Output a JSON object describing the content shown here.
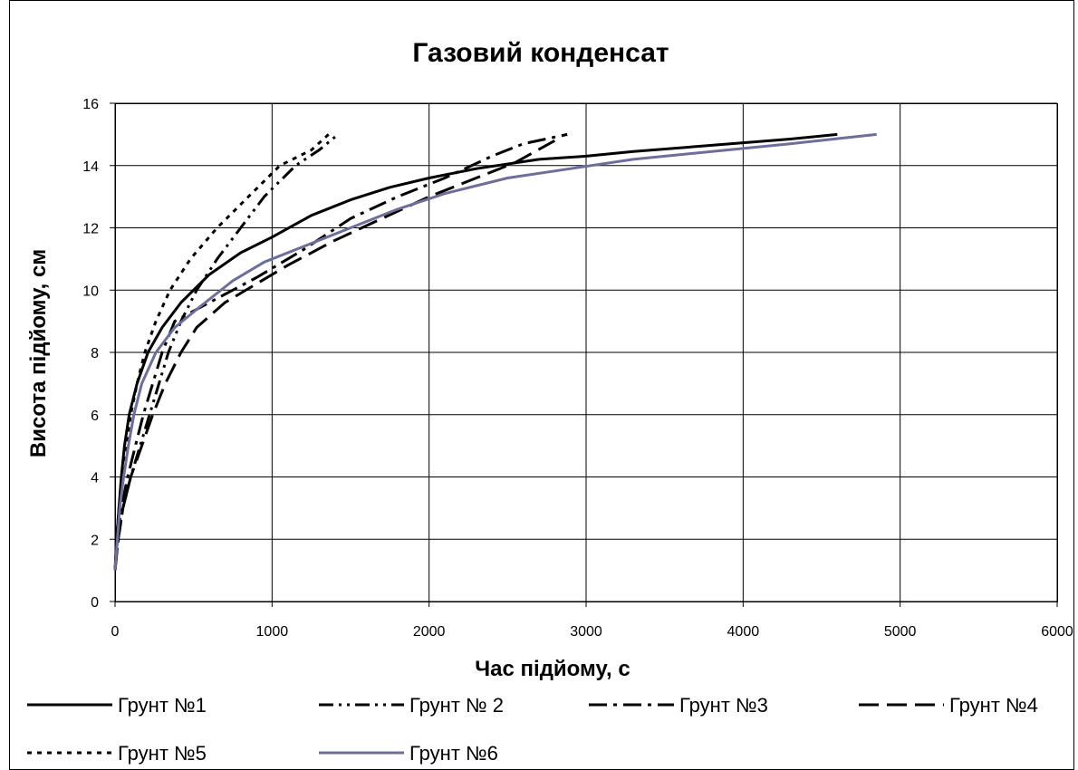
{
  "chart_data": {
    "type": "line",
    "title": "Газовий конденсат",
    "xlabel": "Час підйому, с",
    "ylabel": "Висота підйому, см",
    "xlim": [
      0,
      6000
    ],
    "ylim": [
      0,
      16
    ],
    "xticks": [
      0,
      1000,
      2000,
      3000,
      4000,
      5000,
      6000
    ],
    "yticks": [
      0,
      2,
      4,
      6,
      8,
      10,
      12,
      14,
      16
    ],
    "grid": true,
    "legend_position": "bottom",
    "series": [
      {
        "name": "Грунт №1",
        "color": "#000000",
        "dash": "solid",
        "points": [
          [
            0,
            1
          ],
          [
            10,
            2
          ],
          [
            25,
            3
          ],
          [
            40,
            4
          ],
          [
            60,
            5
          ],
          [
            90,
            6
          ],
          [
            140,
            7
          ],
          [
            210,
            8
          ],
          [
            300,
            8.8
          ],
          [
            420,
            9.6
          ],
          [
            600,
            10.5
          ],
          [
            800,
            11.2
          ],
          [
            1000,
            11.7
          ],
          [
            1250,
            12.4
          ],
          [
            1500,
            12.9
          ],
          [
            1750,
            13.3
          ],
          [
            2000,
            13.6
          ],
          [
            2300,
            13.9
          ],
          [
            2700,
            14.2
          ],
          [
            3000,
            14.3
          ],
          [
            3300,
            14.45
          ],
          [
            3800,
            14.65
          ],
          [
            4300,
            14.85
          ],
          [
            4600,
            15
          ]
        ]
      },
      {
        "name": "Грунт № 2",
        "color": "#000000",
        "dash": "dashdotdot",
        "points": [
          [
            0,
            1
          ],
          [
            20,
            2
          ],
          [
            50,
            3
          ],
          [
            100,
            4
          ],
          [
            160,
            5
          ],
          [
            220,
            6
          ],
          [
            280,
            7
          ],
          [
            340,
            8
          ],
          [
            420,
            9
          ],
          [
            520,
            10
          ],
          [
            650,
            11
          ],
          [
            800,
            12
          ],
          [
            950,
            13
          ],
          [
            1150,
            14
          ],
          [
            1300,
            14.5
          ],
          [
            1420,
            15
          ]
        ]
      },
      {
        "name": "Грунт №3",
        "color": "#000000",
        "dash": "dashdot",
        "points": [
          [
            0,
            1
          ],
          [
            15,
            2
          ],
          [
            40,
            3
          ],
          [
            80,
            4
          ],
          [
            130,
            5
          ],
          [
            180,
            6
          ],
          [
            240,
            7
          ],
          [
            300,
            8
          ],
          [
            380,
            9
          ],
          [
            600,
            9.6
          ],
          [
            900,
            10.4
          ],
          [
            1200,
            11.3
          ],
          [
            1500,
            12.3
          ],
          [
            1800,
            13
          ],
          [
            2100,
            13.6
          ],
          [
            2400,
            14.3
          ],
          [
            2600,
            14.7
          ],
          [
            2880,
            15
          ]
        ]
      },
      {
        "name": "Грунт №4",
        "color": "#000000",
        "dash": "longdash",
        "points": [
          [
            0,
            1
          ],
          [
            20,
            2
          ],
          [
            50,
            3
          ],
          [
            100,
            4
          ],
          [
            170,
            5
          ],
          [
            240,
            6
          ],
          [
            320,
            7
          ],
          [
            420,
            8
          ],
          [
            520,
            8.8
          ],
          [
            700,
            9.6
          ],
          [
            900,
            10.2
          ],
          [
            1100,
            10.8
          ],
          [
            1400,
            11.6
          ],
          [
            1700,
            12.3
          ],
          [
            2000,
            13
          ],
          [
            2300,
            13.6
          ],
          [
            2550,
            14.1
          ],
          [
            2800,
            14.8
          ]
        ]
      },
      {
        "name": "Грунт №5",
        "color": "#000000",
        "dash": "dotted",
        "points": [
          [
            0,
            1
          ],
          [
            10,
            2
          ],
          [
            25,
            3
          ],
          [
            45,
            4
          ],
          [
            70,
            5
          ],
          [
            100,
            6
          ],
          [
            140,
            7
          ],
          [
            190,
            8
          ],
          [
            260,
            9
          ],
          [
            350,
            10
          ],
          [
            480,
            11
          ],
          [
            650,
            12
          ],
          [
            850,
            13
          ],
          [
            1050,
            14
          ],
          [
            1250,
            14.5
          ],
          [
            1360,
            15
          ]
        ]
      },
      {
        "name": "Грунт №6",
        "color": "#6e6e9a",
        "dash": "solid",
        "points": [
          [
            0,
            1
          ],
          [
            15,
            2
          ],
          [
            30,
            3
          ],
          [
            55,
            4
          ],
          [
            85,
            5
          ],
          [
            120,
            6
          ],
          [
            170,
            7
          ],
          [
            260,
            8
          ],
          [
            380,
            8.8
          ],
          [
            550,
            9.5
          ],
          [
            750,
            10.3
          ],
          [
            950,
            10.9
          ],
          [
            1200,
            11.4
          ],
          [
            1500,
            12
          ],
          [
            1800,
            12.6
          ],
          [
            2100,
            13.1
          ],
          [
            2500,
            13.6
          ],
          [
            2900,
            13.9
          ],
          [
            3300,
            14.2
          ],
          [
            3800,
            14.45
          ],
          [
            4300,
            14.7
          ],
          [
            4850,
            15
          ]
        ]
      }
    ]
  }
}
